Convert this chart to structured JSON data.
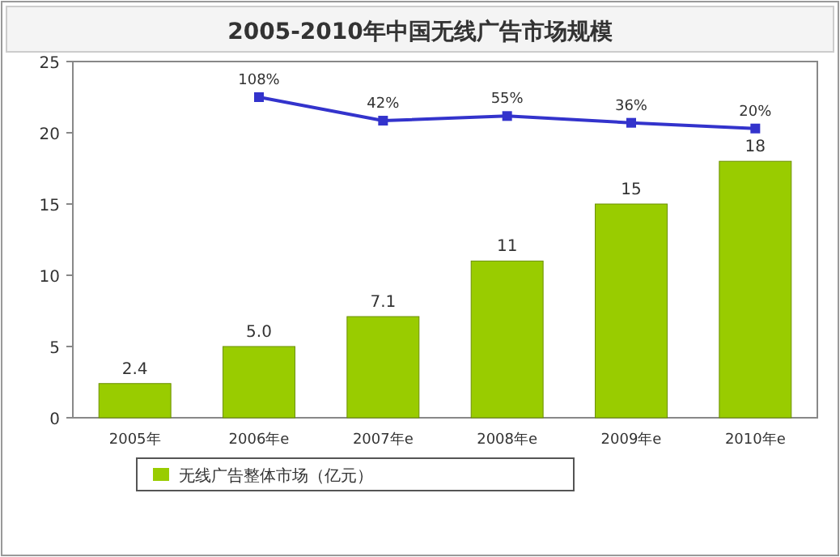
{
  "chart_data": {
    "type": "bar",
    "title": "2005-2010年中国无线广告市场规模",
    "categories": [
      "2005年",
      "2006年e",
      "2007年e",
      "2008年e",
      "2009年e",
      "2010年e"
    ],
    "series": [
      {
        "name": "无线广告整体市场（亿元）",
        "color": "#99cc00",
        "values": [
          2.4,
          5.0,
          7.1,
          11,
          15,
          18
        ],
        "value_labels": [
          "2.4",
          "5.0",
          "7.1",
          "11",
          "15",
          "18"
        ]
      },
      {
        "type": "line",
        "axis": "y2",
        "color": "#3333cc",
        "marker": "square",
        "values": [
          null,
          108,
          42,
          55,
          36,
          20
        ],
        "value_labels": [
          null,
          "108%",
          "42%",
          "55%",
          "36%",
          "20%"
        ]
      }
    ],
    "ylim": [
      0,
      25
    ],
    "yticks": [
      0,
      5,
      10,
      15,
      20,
      25
    ],
    "y2lim": [
      -792,
      208
    ],
    "legend": "bottom"
  }
}
